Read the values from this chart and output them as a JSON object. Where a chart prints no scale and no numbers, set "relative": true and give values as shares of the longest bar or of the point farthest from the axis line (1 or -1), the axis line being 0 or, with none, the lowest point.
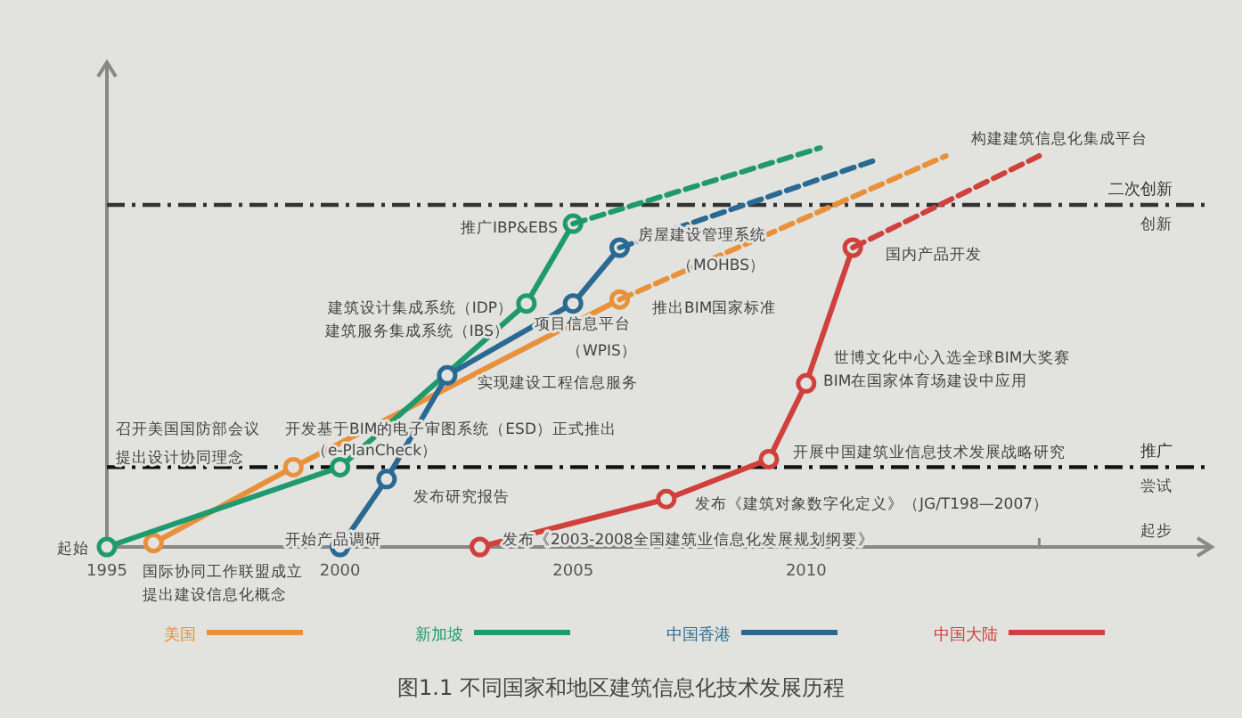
{
  "chart_data": {
    "type": "line",
    "relative": true,
    "title": "图1.1 不同国家和地区建筑信息化技术发展历程",
    "xlim": [
      1995,
      2018.7
    ],
    "xticks": [
      1995,
      2000,
      2005,
      2010,
      {
        "value": 2015,
        "label": null
      }
    ],
    "legend": "bottom",
    "marker": "circle",
    "line_style": "solid",
    "series": [
      {
        "name": "美国",
        "color": "#e8913a",
        "x": [
          1996,
          1999,
          2006
        ],
        "values": [
          0.01,
          0.2,
          0.62
        ]
      },
      {
        "name": "新加坡",
        "color": "#1f9a6e",
        "x": [
          1995,
          2000,
          2004,
          2005
        ],
        "values": [
          0,
          0.2,
          0.61,
          0.81
        ]
      },
      {
        "name": "中国香港",
        "color": "#2a6a92",
        "x": [
          2000,
          2001,
          2002.3,
          2005,
          2006
        ],
        "values": [
          0,
          0.17,
          0.43,
          0.61,
          0.75
        ]
      },
      {
        "name": "中国大陆",
        "color": "#d0403c",
        "x": [
          2003,
          2007,
          2009.2,
          2010,
          2011
        ],
        "values": [
          0,
          0.12,
          0.22,
          0.41,
          0.75
        ]
      },
      {
        "color": "#e8913a",
        "x": [
          2006,
          2013
        ],
        "values": [
          0.62,
          0.98
        ],
        "line_style": "dashed",
        "marker": "none"
      },
      {
        "color": "#1f9a6e",
        "x": [
          2005,
          2010.3
        ],
        "values": [
          0.81,
          1.0
        ],
        "line_style": "dashed",
        "marker": "none"
      },
      {
        "color": "#2a6a92",
        "x": [
          2006,
          2011.5
        ],
        "values": [
          0.75,
          0.97
        ],
        "line_style": "dashed",
        "marker": "none"
      },
      {
        "color": "#d0403c",
        "x": [
          2011,
          2015
        ],
        "values": [
          0.75,
          0.98
        ],
        "line_style": "dashed",
        "marker": "none"
      }
    ],
    "ref_lines": [
      {
        "axis": "y",
        "value": 0.857,
        "label": "二次创新",
        "color": "#333333",
        "line_style": "dashdot"
      },
      {
        "axis": "y",
        "value": 0.2,
        "label": "推广",
        "color": "#111111",
        "line_style": "dashdot"
      }
    ],
    "annotations": [
      "推广IBP&EBS",
      "建筑设计集成系统（IDP）",
      "建筑服务集成系统（IBS）",
      "房屋建设管理系统",
      "（MOHBS）",
      "推出BIM国家标准",
      "项目信息平台",
      "（WPIS）",
      "实现建设工程信息服务",
      "开发基于BIM的电子审图系统（ESD）正式推出",
      "（e-PlanCheck）",
      "发布研究报告",
      "开始产品调研",
      "召开美国国防部会议",
      "提出设计协同理念",
      "国际协同工作联盟成立",
      "提出建设信息化概念",
      "发布《2003-2008全国建筑业信息化发展规划纲要》",
      "发布《建筑对象数字化定义》（JG/T198—2007）",
      "开展中国建筑业信息技术发展战略研究",
      "世博文化中心入选全球BIM大奖赛",
      "BIM在国家体育场建设中应用",
      "国内产品开发",
      "构建建筑信息化集成平台",
      "创新",
      "尝试",
      "起始",
      "起步"
    ]
  }
}
